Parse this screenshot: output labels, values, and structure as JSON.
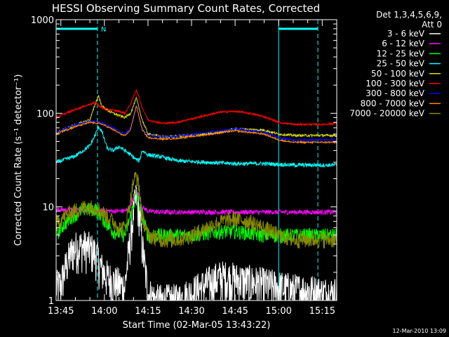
{
  "chart_data": {
    "type": "line",
    "title": "HESSI Observing Summary Count Rates, Corrected",
    "xlabel": "Start Time (02-Mar-05 13:43:22)",
    "ylabel": "Corrected Count Rate (s⁻¹ detector⁻¹)",
    "yscale": "log",
    "xlim": [
      -1.63,
      95
    ],
    "ylim": [
      1,
      1000
    ],
    "x_tick_labels": [
      "13:45",
      "14:00",
      "14:15",
      "14:30",
      "14:45",
      "15:00",
      "15:15"
    ],
    "x_tick_values": [
      0,
      15,
      30,
      45,
      60,
      75,
      90
    ],
    "y_tick_labels": [
      "1",
      "10",
      "100",
      "1000"
    ],
    "y_tick_values": [
      1,
      10,
      100,
      1000
    ],
    "grid": false,
    "legend": {
      "placement": "right",
      "header": [
        "Det 1,3,4,5,6,9,",
        "Att 0"
      ]
    },
    "footer": "12-Mar-2010 13:09",
    "night_markers": [
      {
        "x1": -1.4,
        "x2": 12.6,
        "label": ""
      },
      {
        "x1": 12.6,
        "x2": 12.6,
        "label": "N"
      },
      {
        "x1": 75,
        "x2": 88.5,
        "label": ""
      }
    ],
    "vertical_markers": [
      {
        "x": 12.6,
        "style": "dashed"
      },
      {
        "x": 75,
        "style": "solid"
      },
      {
        "x": 88.5,
        "style": "dashed"
      }
    ],
    "series": [
      {
        "name": "3 - 6 keV",
        "color": "#ffffff",
        "x": [
          -1.6,
          0,
          2,
          4,
          6,
          8,
          10,
          12,
          14,
          16,
          18,
          20,
          22,
          24,
          25,
          26,
          27,
          28,
          30,
          33,
          36,
          40,
          45,
          50,
          55,
          60,
          65,
          70,
          75,
          80,
          85,
          90,
          95
        ],
        "y": [
          1.4,
          1.5,
          2.5,
          3.5,
          3.8,
          3.8,
          3.6,
          3.2,
          2.2,
          1.8,
          1.6,
          1.5,
          1.4,
          5,
          9,
          13,
          9,
          4,
          1.2,
          1.0,
          1.0,
          1.0,
          1.2,
          1.5,
          1.8,
          1.7,
          1.6,
          1.5,
          1.4,
          1.3,
          1.3,
          1.2,
          1.2
        ],
        "noise": 0.5
      },
      {
        "name": "6 - 12 keV",
        "color": "#ff00ff",
        "x": [
          -1.6,
          0,
          10,
          20,
          23,
          25,
          26,
          27,
          28,
          30,
          35,
          45,
          60,
          75,
          90,
          95
        ],
        "y": [
          9.3,
          9.3,
          9.2,
          9.0,
          9.2,
          12,
          15.5,
          13,
          10,
          9.0,
          8.8,
          8.8,
          8.8,
          8.8,
          8.8,
          8.8
        ],
        "noise": 0.06
      },
      {
        "name": "12 - 25 keV",
        "color": "#00ff00",
        "x": [
          -1.6,
          0,
          4,
          8,
          12,
          14,
          16,
          18,
          22,
          24,
          26,
          28,
          30,
          35,
          45,
          55,
          60,
          70,
          80,
          90,
          95
        ],
        "y": [
          5,
          6,
          8,
          9.5,
          9.5,
          8,
          6.5,
          5.5,
          5,
          8,
          14,
          8,
          5,
          5,
          5,
          5.5,
          5.5,
          5,
          5,
          5,
          5
        ],
        "noise": 0.18
      },
      {
        "name": "25 - 50 keV",
        "color": "#00ffff",
        "x": [
          -1.6,
          0,
          5,
          10,
          12,
          13,
          14,
          16,
          18,
          20,
          22,
          24,
          26,
          27,
          28,
          30,
          35,
          40,
          50,
          60,
          70,
          80,
          90,
          95
        ],
        "y": [
          30,
          31,
          35,
          45,
          60,
          72,
          65,
          42,
          40,
          44,
          40,
          36,
          32,
          31,
          40,
          36,
          34,
          31,
          30,
          29,
          29,
          28,
          28,
          28
        ],
        "noise": 0.05
      },
      {
        "name": "50 - 100 keV",
        "color": "#dddd00",
        "x": [
          -1.6,
          0,
          5,
          10,
          12,
          13,
          14,
          16,
          18,
          20,
          22,
          24,
          26,
          28,
          30,
          35,
          40,
          50,
          60,
          70,
          75,
          80,
          90,
          95
        ],
        "y": [
          62,
          65,
          75,
          85,
          130,
          155,
          120,
          108,
          100,
          95,
          90,
          100,
          145,
          85,
          60,
          56,
          57,
          60,
          68,
          66,
          60,
          58,
          58,
          58
        ],
        "noise": 0.03
      },
      {
        "name": "100 - 300 keV",
        "color": "#ff0000",
        "x": [
          -1.6,
          0,
          5,
          10,
          12,
          14,
          16,
          20,
          22,
          24,
          26,
          28,
          30,
          35,
          40,
          50,
          55,
          60,
          65,
          70,
          75,
          80,
          90,
          95
        ],
        "y": [
          90,
          95,
          110,
          125,
          130,
          115,
          110,
          105,
          100,
          125,
          180,
          115,
          85,
          78,
          80,
          95,
          103,
          105,
          100,
          92,
          80,
          76,
          76,
          78
        ],
        "noise": 0.025
      },
      {
        "name": "300 - 800 keV",
        "color": "#0000ff",
        "x": [
          -1.6,
          0,
          5,
          10,
          14,
          18,
          22,
          24,
          26,
          28,
          30,
          35,
          40,
          50,
          60,
          70,
          75,
          80,
          90,
          95
        ],
        "y": [
          62,
          65,
          75,
          83,
          80,
          70,
          60,
          70,
          125,
          70,
          58,
          56,
          57,
          62,
          68,
          63,
          55,
          52,
          52,
          52
        ],
        "noise": 0.02
      },
      {
        "name": "800 - 7000 keV",
        "color": "#ff8800",
        "x": [
          -1.6,
          0,
          5,
          10,
          14,
          18,
          22,
          24,
          26,
          28,
          30,
          35,
          40,
          50,
          60,
          70,
          75,
          80,
          90,
          95
        ],
        "y": [
          60,
          63,
          72,
          80,
          77,
          67,
          57,
          67,
          120,
          67,
          55,
          53,
          54,
          59,
          65,
          60,
          52,
          49,
          49,
          49
        ],
        "noise": 0.02
      },
      {
        "name": "7000 - 20000 keV",
        "color": "#888800",
        "x": [
          -1.6,
          0,
          4,
          8,
          12,
          14,
          16,
          18,
          20,
          22,
          24,
          25,
          26,
          27,
          28,
          30,
          35,
          40,
          45,
          50,
          55,
          60,
          65,
          70,
          75,
          80,
          85,
          90,
          95
        ],
        "y": [
          6.5,
          7.5,
          9,
          10,
          10,
          9,
          8,
          7,
          6,
          6,
          12,
          19,
          22,
          16,
          8,
          5,
          4.5,
          4.5,
          5,
          6,
          7,
          7.5,
          7,
          6,
          5,
          4.5,
          4.5,
          4.5,
          4.5
        ],
        "noise": 0.2
      }
    ]
  }
}
